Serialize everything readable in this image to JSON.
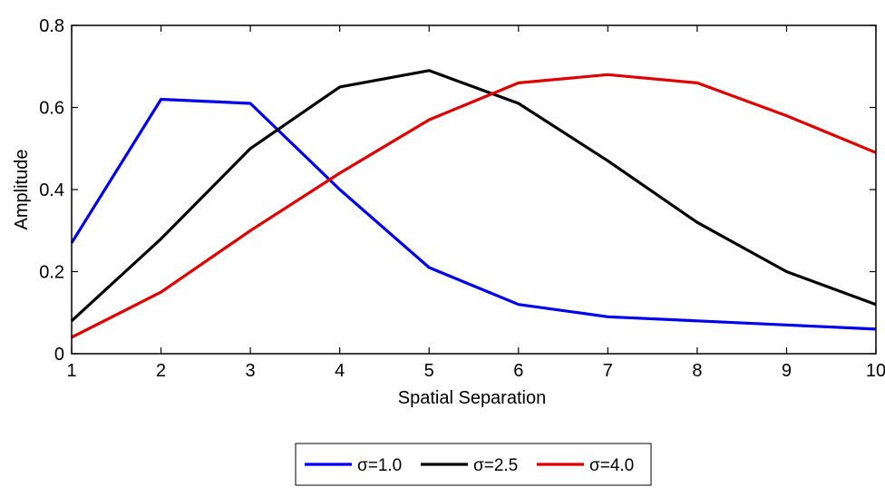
{
  "chart_data": {
    "type": "line",
    "title": "",
    "xlabel": "Spatial Separation",
    "ylabel": "Amplitude",
    "x": [
      1,
      2,
      3,
      4,
      5,
      6,
      7,
      8,
      9,
      10
    ],
    "xlim": [
      1,
      10
    ],
    "ylim": [
      0,
      0.8
    ],
    "xticks": [
      "1",
      "2",
      "3",
      "4",
      "5",
      "6",
      "7",
      "8",
      "9",
      "10"
    ],
    "yticks": [
      "0",
      "0.2",
      "0.4",
      "0.6",
      "0.8"
    ],
    "grid": false,
    "legend_position": "bottom-center",
    "series": [
      {
        "name": "σ=1.0",
        "color": "#0000ee",
        "values": [
          0.27,
          0.62,
          0.61,
          0.4,
          0.21,
          0.12,
          0.09,
          0.08,
          0.07,
          0.06
        ]
      },
      {
        "name": "σ=2.5",
        "color": "#000000",
        "values": [
          0.08,
          0.28,
          0.5,
          0.65,
          0.69,
          0.61,
          0.47,
          0.32,
          0.2,
          0.12
        ]
      },
      {
        "name": "σ=4.0",
        "color": "#e00000",
        "values": [
          0.04,
          0.15,
          0.3,
          0.44,
          0.57,
          0.66,
          0.68,
          0.66,
          0.58,
          0.49
        ]
      }
    ]
  }
}
